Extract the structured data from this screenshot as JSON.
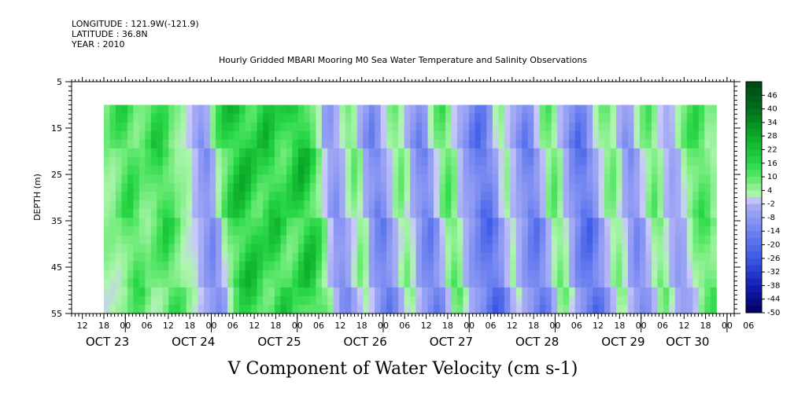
{
  "header": {
    "longitude": "LONGITUDE : 121.9W(-121.9)",
    "latitude": "LATITUDE : 36.8N",
    "year": "YEAR : 2010"
  },
  "chart_data": {
    "type": "heatmap",
    "title": "Hourly Gridded MBARI Mooring M0 Sea Water Temperature and Salinity Observations",
    "xlabel": "V Component of Water Velocity (cm s-1)",
    "ylabel": "DEPTH (m)",
    "ylim": [
      55,
      5
    ],
    "y_ticks": [
      "5",
      "15",
      "25",
      "35",
      "45",
      "55"
    ],
    "x_hour_ticks": [
      "12",
      "18",
      "00",
      "06",
      "12",
      "18",
      "00",
      "06",
      "12",
      "18",
      "00",
      "06",
      "12",
      "18",
      "00",
      "06",
      "12",
      "18",
      "00",
      "06",
      "12",
      "18",
      "00",
      "06",
      "12",
      "18",
      "00",
      "06",
      "12",
      "18",
      "00",
      "06"
    ],
    "x_day_labels": [
      "OCT 23",
      "OCT 24",
      "OCT 25",
      "OCT 26",
      "OCT 27",
      "OCT 28",
      "OCT 29",
      "OCT 30"
    ],
    "x_day_label_hours": [
      -5,
      19,
      43,
      67,
      91,
      115,
      139,
      157
    ],
    "time_range_hours": [
      -15,
      170
    ],
    "data_time_range_hours": [
      -6,
      165
    ],
    "data_depth_range": [
      10,
      55
    ],
    "colorbar_labels": [
      "46",
      "40",
      "34",
      "28",
      "22",
      "16",
      "10",
      "4",
      "-2",
      "-8",
      "-14",
      "-20",
      "-26",
      "-32",
      "-38",
      "-44",
      "-50"
    ],
    "colorbar_range": [
      -50,
      52
    ],
    "colorbar_step": 3,
    "column_values_representative": [
      8,
      12,
      16,
      18,
      14,
      10,
      12,
      15,
      20,
      18,
      14,
      8,
      6,
      4,
      0,
      -6,
      -10,
      -4,
      6,
      14,
      20,
      24,
      26,
      24,
      20,
      18,
      22,
      24,
      20,
      16,
      18,
      22,
      26,
      24,
      18,
      10,
      2,
      -6,
      -8,
      -2,
      4,
      10,
      6,
      -4,
      -10,
      -14,
      -8,
      0,
      6,
      10,
      4,
      -4,
      -10,
      -14,
      -8,
      2,
      10,
      14,
      8,
      0,
      -6,
      -10,
      -16,
      -20,
      -16,
      -8,
      2,
      6,
      0,
      -6,
      -12,
      -16,
      -10,
      0,
      8,
      12,
      6,
      -2,
      -10,
      -16,
      -20,
      -14,
      -6,
      2,
      8,
      10,
      4,
      -4,
      -10,
      -6,
      2,
      8,
      12,
      6,
      0,
      -4,
      -2,
      4,
      10,
      14,
      16,
      12,
      6,
      8
    ]
  }
}
